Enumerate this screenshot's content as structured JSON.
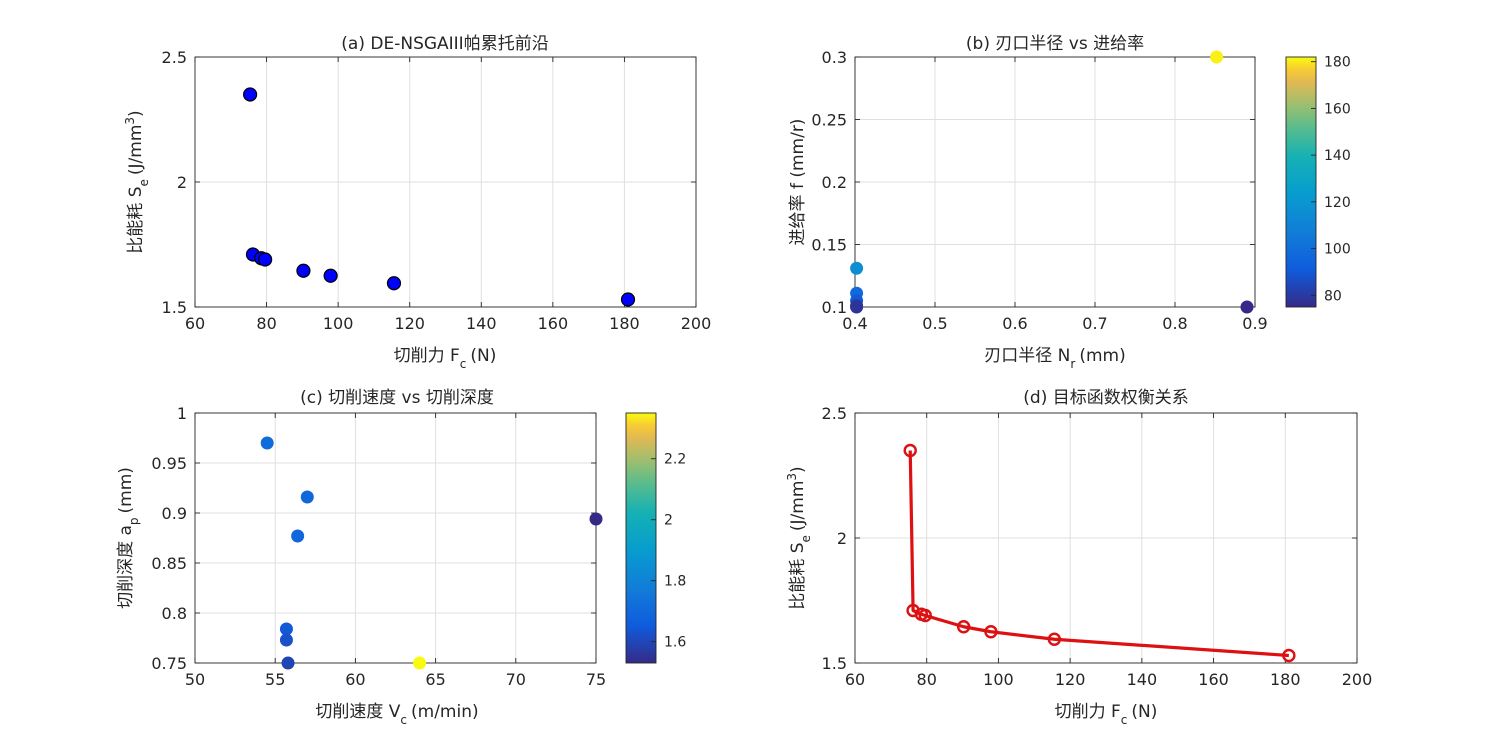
{
  "chart_data": [
    {
      "id": "a",
      "type": "scatter",
      "title": "(a) DE-NSGAIII帕累托前沿",
      "xlabel": "切削力 F",
      "xlabel_sub": "c",
      "xlabel_unit": "(N)",
      "ylabel": "比能耗 S",
      "ylabel_sub": "e",
      "ylabel_unit": "(J/mm",
      "ylabel_sup": "3",
      "ylabel_tail": ")",
      "xlim": [
        60,
        200
      ],
      "ylim": [
        1.5,
        2.5
      ],
      "xticks": [
        60,
        80,
        100,
        120,
        140,
        160,
        180,
        200
      ],
      "yticks": [
        1.5,
        2,
        2.5
      ],
      "xtick_labels": [
        "60",
        "80",
        "100",
        "120",
        "140",
        "160",
        "180",
        "200"
      ],
      "ytick_labels": [
        "1.5",
        "2",
        "2.5"
      ],
      "grid": true,
      "marker_color": "#0000ff",
      "points": [
        {
          "x": 75.4,
          "y": 2.35
        },
        {
          "x": 76.2,
          "y": 1.71
        },
        {
          "x": 78.5,
          "y": 1.695
        },
        {
          "x": 79.6,
          "y": 1.69
        },
        {
          "x": 90.3,
          "y": 1.645
        },
        {
          "x": 97.9,
          "y": 1.625
        },
        {
          "x": 115.6,
          "y": 1.595
        },
        {
          "x": 181.0,
          "y": 1.53
        }
      ]
    },
    {
      "id": "b",
      "type": "scatter",
      "title": "(b) 刃口半径 vs 进给率",
      "xlabel": "刃口半径 N",
      "xlabel_sub": "r",
      "xlabel_unit": "(mm)",
      "ylabel": "进给率 f (mm/r)",
      "xlim": [
        0.4,
        0.9
      ],
      "ylim": [
        0.1,
        0.3
      ],
      "xticks": [
        0.4,
        0.5,
        0.6,
        0.7,
        0.8,
        0.9
      ],
      "yticks": [
        0.1,
        0.15,
        0.2,
        0.25,
        0.3
      ],
      "xtick_labels": [
        "0.4",
        "0.5",
        "0.6",
        "0.7",
        "0.8",
        "0.9"
      ],
      "ytick_labels": [
        "0.1",
        "0.15",
        "0.2",
        "0.25",
        "0.3"
      ],
      "grid": true,
      "colorbar": {
        "clim": [
          75,
          182
        ],
        "ticks": [
          80,
          100,
          120,
          140,
          160,
          180
        ],
        "tick_labels": [
          "80",
          "100",
          "120",
          "140",
          "160",
          "180"
        ]
      },
      "points": [
        {
          "x": 0.852,
          "y": 0.3,
          "c": 181
        },
        {
          "x": 0.402,
          "y": 0.131,
          "c": 116
        },
        {
          "x": 0.402,
          "y": 0.111,
          "c": 98
        },
        {
          "x": 0.402,
          "y": 0.105,
          "c": 90
        },
        {
          "x": 0.402,
          "y": 0.101,
          "c": 80
        },
        {
          "x": 0.402,
          "y": 0.1,
          "c": 78
        },
        {
          "x": 0.89,
          "y": 0.1,
          "c": 75
        }
      ]
    },
    {
      "id": "c",
      "type": "scatter",
      "title": "(c) 切削速度 vs 切削深度",
      "xlabel": "切削速度 V",
      "xlabel_sub": "c",
      "xlabel_unit": "(m/min)",
      "ylabel": "切削深度 a",
      "ylabel_sub": "p",
      "ylabel_unit": "(mm)",
      "xlim": [
        50,
        75
      ],
      "ylim": [
        0.75,
        1.0
      ],
      "xticks": [
        50,
        55,
        60,
        65,
        70,
        75
      ],
      "yticks": [
        0.75,
        0.8,
        0.85,
        0.9,
        0.95,
        1
      ],
      "xtick_labels": [
        "50",
        "55",
        "60",
        "65",
        "70",
        "75"
      ],
      "ytick_labels": [
        "0.75",
        "0.8",
        "0.85",
        "0.9",
        "0.95",
        "1"
      ],
      "grid": true,
      "colorbar": {
        "clim": [
          1.53,
          2.35
        ],
        "ticks": [
          1.6,
          1.8,
          2.0,
          2.2
        ],
        "tick_labels": [
          "1.6",
          "1.8",
          "2",
          "2.2"
        ]
      },
      "points": [
        {
          "x": 54.5,
          "y": 0.97,
          "c": 1.71
        },
        {
          "x": 57.0,
          "y": 0.916,
          "c": 1.695
        },
        {
          "x": 56.4,
          "y": 0.877,
          "c": 1.69
        },
        {
          "x": 55.7,
          "y": 0.784,
          "c": 1.645
        },
        {
          "x": 55.7,
          "y": 0.773,
          "c": 1.625
        },
        {
          "x": 55.8,
          "y": 0.75,
          "c": 1.595
        },
        {
          "x": 64.0,
          "y": 0.75,
          "c": 2.35
        },
        {
          "x": 75.0,
          "y": 0.894,
          "c": 1.53
        }
      ]
    },
    {
      "id": "d",
      "type": "line",
      "title": "(d) 目标函数权衡关系",
      "xlabel": "切削力 F",
      "xlabel_sub": "c",
      "xlabel_unit": "(N)",
      "ylabel": "比能耗 S",
      "ylabel_sub": "e",
      "ylabel_unit": "(J/mm",
      "ylabel_sup": "3",
      "ylabel_tail": ")",
      "xlim": [
        60,
        200
      ],
      "ylim": [
        1.5,
        2.5
      ],
      "xticks": [
        60,
        80,
        100,
        120,
        140,
        160,
        180,
        200
      ],
      "yticks": [
        1.5,
        2,
        2.5
      ],
      "xtick_labels": [
        "60",
        "80",
        "100",
        "120",
        "140",
        "160",
        "180",
        "200"
      ],
      "ytick_labels": [
        "1.5",
        "2",
        "2.5"
      ],
      "grid": true,
      "line_color": "#dd1111",
      "points": [
        {
          "x": 75.4,
          "y": 2.35
        },
        {
          "x": 76.2,
          "y": 1.71
        },
        {
          "x": 78.5,
          "y": 1.695
        },
        {
          "x": 79.6,
          "y": 1.69
        },
        {
          "x": 90.3,
          "y": 1.645
        },
        {
          "x": 97.9,
          "y": 1.625
        },
        {
          "x": 115.6,
          "y": 1.595
        },
        {
          "x": 181.0,
          "y": 1.53
        }
      ]
    }
  ]
}
